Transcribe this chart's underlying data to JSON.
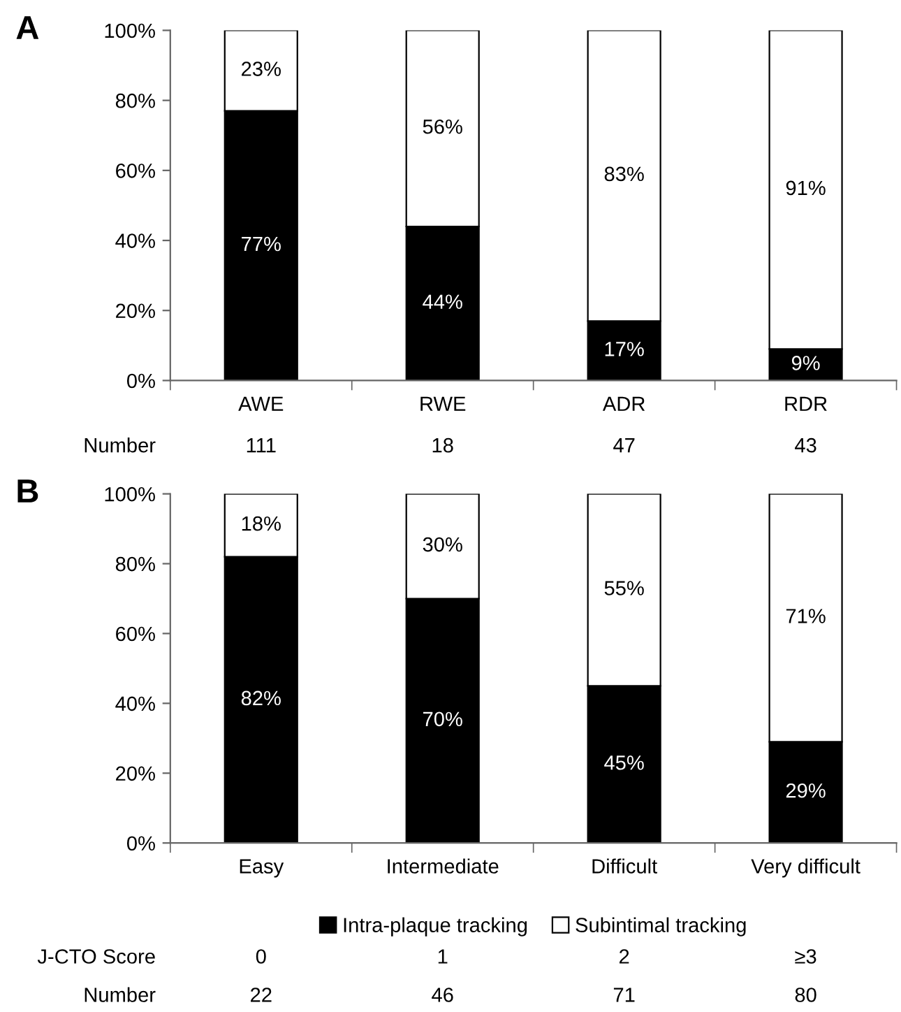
{
  "chart_data": [
    {
      "type": "bar",
      "title": "A",
      "stacked": true,
      "categories": [
        "AWE",
        "RWE",
        "ADR",
        "RDR"
      ],
      "series": [
        {
          "color": "#000000",
          "values": [
            77,
            44,
            17,
            9
          ],
          "value_labels": [
            "77%",
            "44%",
            "17%",
            "9%"
          ]
        },
        {
          "color": "#ffffff",
          "values": [
            23,
            56,
            83,
            91
          ],
          "value_labels": [
            "23%",
            "56%",
            "83%",
            "91%"
          ]
        }
      ],
      "ylim": [
        0,
        100
      ],
      "yticks": [
        {
          "value": 0,
          "label": "0%"
        },
        {
          "value": 20,
          "label": "20%"
        },
        {
          "value": 40,
          "label": "40%"
        },
        {
          "value": 60,
          "label": "60%"
        },
        {
          "value": 80,
          "label": "80%"
        },
        {
          "value": 100,
          "label": "100%"
        }
      ],
      "grid": false,
      "legend": false,
      "annotations": [
        "Number",
        "111",
        "18",
        "47",
        "43"
      ]
    },
    {
      "type": "bar",
      "title": "B",
      "stacked": true,
      "categories": [
        "Easy",
        "Intermediate",
        "Difficult",
        "Very difficult"
      ],
      "series": [
        {
          "name": "Intra-plaque tracking",
          "color": "#000000",
          "values": [
            82,
            70,
            45,
            29
          ],
          "value_labels": [
            "82%",
            "70%",
            "45%",
            "29%"
          ]
        },
        {
          "name": "Subintimal tracking",
          "color": "#ffffff",
          "values": [
            18,
            30,
            55,
            71
          ],
          "value_labels": [
            "18%",
            "30%",
            "55%",
            "71%"
          ]
        }
      ],
      "ylim": [
        0,
        100
      ],
      "yticks": [
        {
          "value": 0,
          "label": "0%"
        },
        {
          "value": 20,
          "label": "20%"
        },
        {
          "value": 40,
          "label": "40%"
        },
        {
          "value": 60,
          "label": "60%"
        },
        {
          "value": 80,
          "label": "80%"
        },
        {
          "value": 100,
          "label": "100%"
        }
      ],
      "grid": false,
      "legend": "bottom",
      "annotations": [
        "J-CTO Score",
        "0",
        "1",
        "2",
        "≥3",
        "Number",
        "22",
        "46",
        "71",
        "80"
      ]
    }
  ]
}
